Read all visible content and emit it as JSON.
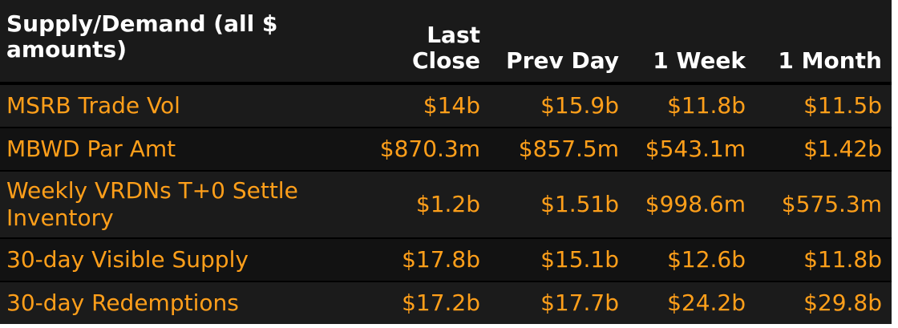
{
  "chart_data": {
    "type": "table",
    "columns": [
      "Supply/Demand (all $ amounts)",
      "Last Close",
      "Prev Day",
      "1 Week",
      "1 Month"
    ],
    "rows": [
      [
        "MSRB Trade Vol",
        "$14b",
        "$15.9b",
        "$11.8b",
        "$11.5b"
      ],
      [
        "MBWD Par Amt",
        "$870.3m",
        "$857.5m",
        "$543.1m",
        "$1.42b"
      ],
      [
        "Weekly VRDNs T+0 Settle Inventory",
        "$1.2b",
        "$1.51b",
        "$998.6m",
        "$575.3m"
      ],
      [
        "30-day Visible Supply",
        "$17.8b",
        "$15.1b",
        "$12.6b",
        "$11.8b"
      ],
      [
        "30-day Redemptions",
        "$17.2b",
        "$17.7b",
        "$24.2b",
        "$29.8b"
      ]
    ]
  },
  "colors": {
    "background": "#000000",
    "header_text": "#ffffff",
    "value_text": "#ff9f1a"
  }
}
